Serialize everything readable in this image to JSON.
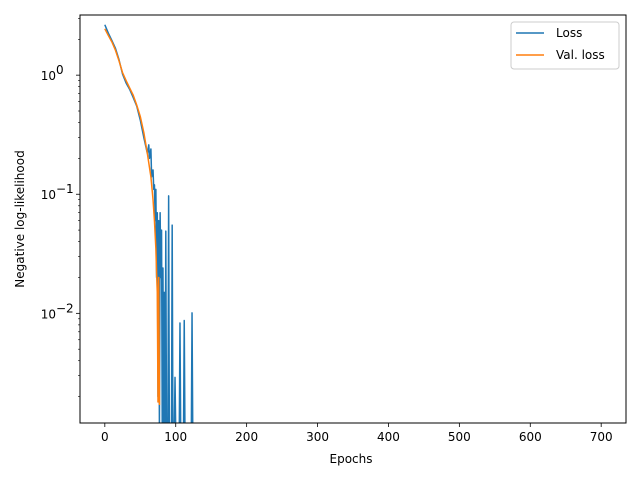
{
  "chart_data": {
    "type": "line",
    "title": "",
    "xlabel": "Epochs",
    "ylabel": "Negative log-likelihood",
    "xlim": [
      -35,
      735
    ],
    "ylim": [
      0.0012,
      3.2
    ],
    "yscale": "log",
    "grid": false,
    "legend_position": "top-right",
    "x_ticks": [
      0,
      100,
      200,
      300,
      400,
      500,
      600,
      700
    ],
    "x_tick_labels": [
      "0",
      "100",
      "200",
      "300",
      "400",
      "500",
      "600",
      "700"
    ],
    "y_ticks": [
      0.01,
      0.1,
      1
    ],
    "y_tick_labels": [
      "10",
      "10",
      "10"
    ],
    "y_tick_exponents": [
      "−2",
      "−1",
      "0"
    ],
    "series": [
      {
        "name": "Loss",
        "color": "#1f77b4",
        "x": [
          0,
          5,
          10,
          15,
          20,
          25,
          30,
          35,
          40,
          45,
          50,
          55,
          60,
          62,
          63,
          65,
          66,
          68,
          69,
          70,
          71,
          72,
          73,
          74,
          75,
          76,
          77,
          78,
          79,
          80,
          81,
          82,
          83,
          84,
          85,
          86,
          87,
          88,
          89,
          90,
          91,
          92,
          93,
          94,
          95,
          96,
          97,
          98,
          99,
          100,
          101,
          102,
          104,
          105,
          106,
          107,
          108,
          109,
          110,
          111,
          112,
          113,
          114,
          115,
          116,
          117,
          118,
          119,
          120,
          121,
          122,
          123,
          124
        ],
        "y": [
          2.65,
          2.25,
          1.95,
          1.68,
          1.35,
          1.02,
          0.86,
          0.76,
          0.65,
          0.55,
          0.42,
          0.3,
          0.22,
          0.26,
          0.2,
          0.24,
          0.14,
          0.16,
          0.11,
          0.12,
          0.06,
          0.11,
          0.02,
          0.07,
          0.002,
          0.06,
          0.001,
          0.07,
          0.02,
          0.05,
          0.001,
          0.024,
          0.001,
          0.015,
          0.001,
          0.049,
          0.001,
          0.001,
          0.001,
          0.097,
          0.001,
          0.001,
          0.001,
          0.001,
          0.055,
          0.001,
          0.001,
          0.001,
          0.0029,
          0.001,
          0.001,
          0.001,
          0.001,
          0.001,
          0.0083,
          0.001,
          0.001,
          0.001,
          0.001,
          0.001,
          0.0087,
          0.001,
          0.001,
          0.001,
          0.001,
          0.001,
          0.001,
          0.001,
          0.001,
          0.001,
          0.001,
          0.0101,
          0.001
        ]
      },
      {
        "name": "Val. loss",
        "color": "#ff7f0e",
        "x": [
          0,
          5,
          10,
          15,
          20,
          25,
          30,
          35,
          40,
          45,
          50,
          55,
          60,
          65,
          68,
          70,
          72,
          73,
          74,
          75,
          76,
          77
        ],
        "y": [
          2.45,
          2.15,
          1.9,
          1.62,
          1.32,
          1.05,
          0.9,
          0.78,
          0.68,
          0.56,
          0.45,
          0.33,
          0.22,
          0.14,
          0.09,
          0.06,
          0.035,
          0.022,
          0.015,
          0.0018,
          0.02,
          0.0017
        ]
      }
    ]
  }
}
